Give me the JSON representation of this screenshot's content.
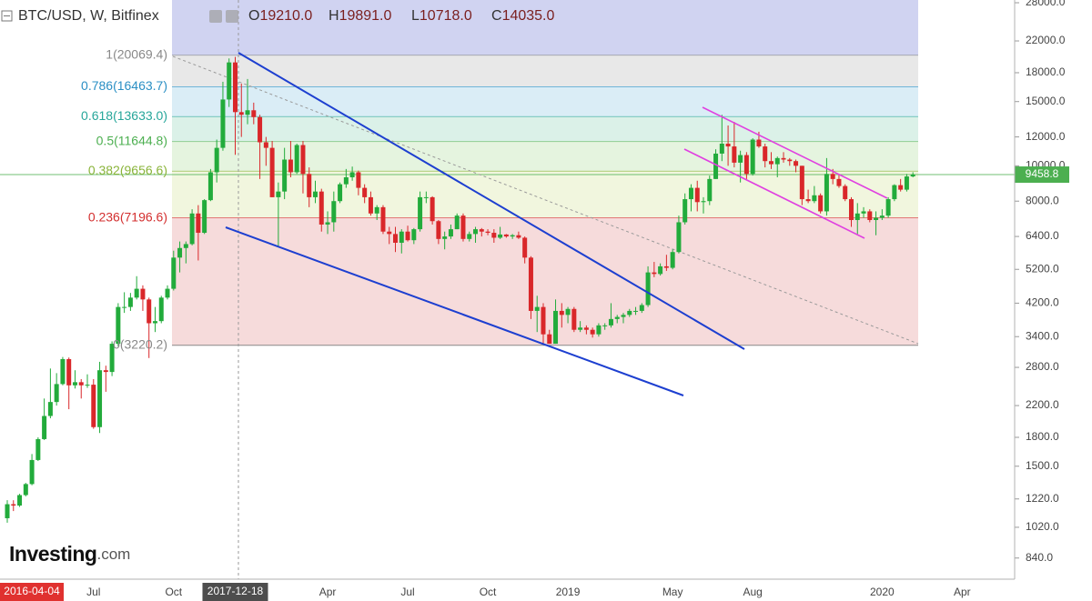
{
  "header": {
    "symbol": "BTC/USD, W, Bitfinex",
    "ohlc": [
      {
        "key": "O",
        "value": "19210.0"
      },
      {
        "key": "H",
        "value": "19891.0"
      },
      {
        "key": "L",
        "value": "10718.0"
      },
      {
        "key": "C",
        "value": "14035.0"
      }
    ]
  },
  "logo": {
    "brand": "Investing",
    "suffix": ".com"
  },
  "cursor_label": "2016-04-04",
  "chart_data": {
    "type": "candlestick",
    "y_scale": "log",
    "up_color": "#22ab3b",
    "down_color": "#d9272a",
    "ylim": [
      735,
      28490
    ],
    "yticks": [
      {
        "value": 840,
        "label": "840.0"
      },
      {
        "value": 1020,
        "label": "1020.0"
      },
      {
        "value": 1220,
        "label": "1220.0"
      },
      {
        "value": 1500,
        "label": "1500.0"
      },
      {
        "value": 1800,
        "label": "1800.0"
      },
      {
        "value": 2200,
        "label": "2200.0"
      },
      {
        "value": 2800,
        "label": "2800.0"
      },
      {
        "value": 3400,
        "label": "3400.0"
      },
      {
        "value": 4200,
        "label": "4200.0"
      },
      {
        "value": 5200,
        "label": "5200.0"
      },
      {
        "value": 6400,
        "label": "6400.0"
      },
      {
        "value": 8000,
        "label": "8000.0"
      },
      {
        "value": 10000,
        "label": "10000.0"
      },
      {
        "value": 12000,
        "label": "12000.0"
      },
      {
        "value": 15000,
        "label": "15000.0"
      },
      {
        "value": 18000,
        "label": "18000.0"
      },
      {
        "value": 22000,
        "label": "22000.0"
      },
      {
        "value": 28000,
        "label": "28000.0"
      }
    ],
    "last_price": {
      "value": 9458.8,
      "label": "9458.8",
      "color": "#4caf50"
    },
    "fib_levels": [
      {
        "value": 20069.4,
        "label": "1(20069.4)",
        "color": "#888888",
        "fill": "#c8cbef"
      },
      {
        "value": 16463.7,
        "label": "0.786(16463.7)",
        "color": "#2a8fc4",
        "fill": "#e4e4e4"
      },
      {
        "value": 13633.0,
        "label": "0.618(13633.0)",
        "color": "#26a69a",
        "fill": "#d4eaf4"
      },
      {
        "value": 11644.8,
        "label": "0.5(11644.8)",
        "color": "#4caf50",
        "fill": "#d5efe4"
      },
      {
        "value": 9656.6,
        "label": "0.382(9656.6)",
        "color": "#8ab43a",
        "fill": "#e0f2d9"
      },
      {
        "value": 7196.6,
        "label": "0.236(7196.6)",
        "color": "#d32f2f",
        "fill": "#eef4d8"
      },
      {
        "value": 3220.2,
        "label": "0(3220.2)",
        "color": "#888888",
        "fill": "#f4d5d5"
      }
    ],
    "categories": [
      null,
      null,
      null,
      null,
      null,
      null,
      null,
      null,
      null,
      null,
      null,
      null,
      null,
      null,
      "Jul",
      null,
      null,
      null,
      null,
      null,
      null,
      null,
      null,
      null,
      null,
      null,
      null,
      "Oct",
      null,
      null,
      null,
      null,
      null,
      null,
      null,
      null,
      null,
      "2017-12-18",
      null,
      null,
      null,
      null,
      null,
      null,
      null,
      null,
      null,
      null,
      null,
      null,
      null,
      null,
      "Apr",
      null,
      null,
      null,
      null,
      null,
      null,
      null,
      null,
      null,
      null,
      null,
      null,
      "Jul",
      null,
      null,
      null,
      null,
      null,
      null,
      null,
      null,
      null,
      null,
      null,
      null,
      "Oct",
      null,
      null,
      null,
      null,
      null,
      null,
      null,
      null,
      null,
      null,
      null,
      null,
      "2019",
      null,
      null,
      null,
      null,
      null,
      null,
      null,
      null,
      null,
      null,
      null,
      null,
      null,
      null,
      null,
      null,
      "May",
      null,
      null,
      null,
      null,
      null,
      null,
      null,
      null,
      null,
      null,
      null,
      null,
      "Aug",
      null,
      null,
      null,
      null,
      null,
      null,
      null,
      null,
      null,
      null,
      null,
      null,
      null,
      null,
      null,
      null,
      null,
      null,
      null,
      null,
      "2020",
      null,
      null,
      null,
      null,
      null,
      null,
      null,
      null,
      null,
      null,
      null,
      null,
      "Apr",
      null,
      null,
      null,
      null,
      null,
      null,
      null,
      null
    ],
    "open": [
      1080,
      1180,
      1170,
      1250,
      1340,
      1560,
      1780,
      2060,
      2250,
      2520,
      2950,
      2500,
      2550,
      2500,
      2510,
      1920,
      2750,
      2720,
      3250,
      4100,
      4100,
      4350,
      4600,
      4300,
      3700,
      3750,
      4350,
      4600,
      5600,
      5950,
      6100,
      7400,
      6550,
      8050,
      9600,
      11200,
      15200,
      19210,
      14035,
      13800,
      14200,
      13600,
      11600,
      11200,
      8200,
      8500,
      10400,
      9600,
      11400,
      9500,
      8200,
      8500,
      6900,
      7000,
      8000,
      8900,
      9300,
      9600,
      8700,
      8200,
      7400,
      7700,
      6600,
      6500,
      6150,
      6600,
      6250,
      6700,
      8200,
      8200,
      7050,
      6300,
      6400,
      6700,
      7300,
      6300,
      6500,
      6700,
      6600,
      6550,
      6350,
      6480,
      6400,
      6450,
      6350,
      5600,
      4000,
      4100,
      3450,
      3250,
      4000,
      3900,
      4050,
      3550,
      3600,
      3550,
      3450,
      3650,
      3650,
      3800,
      3850,
      3900,
      4000,
      4000,
      4150,
      5100,
      5050,
      5300,
      5250,
      5800,
      7000,
      8100,
      8700,
      7950,
      8000,
      9200,
      10800,
      11500,
      11300,
      10200,
      10700,
      9500,
      11800,
      11300,
      10300,
      10100,
      10500,
      10400,
      10300,
      10000,
      8100,
      8000,
      8300,
      7500,
      9500,
      9200,
      8800,
      8100,
      7100,
      7400,
      7500,
      7100,
      7200,
      7300,
      8100,
      8850,
      8600,
      9350,
      null,
      null,
      null,
      null,
      null,
      null,
      null,
      null,
      null,
      null,
      null,
      null,
      null,
      null,
      null,
      null
    ],
    "high": [
      1210,
      1210,
      1260,
      1350,
      1620,
      1800,
      2300,
      2780,
      2700,
      2990,
      2980,
      2750,
      2600,
      2680,
      2600,
      2900,
      2830,
      3300,
      4200,
      4500,
      4480,
      4980,
      4700,
      4350,
      4100,
      4400,
      4700,
      5850,
      6200,
      6200,
      7600,
      7800,
      8100,
      9800,
      11800,
      17000,
      19700,
      19891,
      16800,
      17300,
      14900,
      13800,
      12000,
      11700,
      9000,
      11200,
      11700,
      11500,
      11700,
      9900,
      9100,
      8650,
      7500,
      8500,
      9000,
      9800,
      9950,
      9700,
      8900,
      8500,
      7800,
      7800,
      6800,
      6800,
      6700,
      6850,
      6750,
      8500,
      8500,
      8250,
      7100,
      6600,
      6900,
      7400,
      7400,
      6600,
      6800,
      6750,
      6700,
      6700,
      6800,
      6500,
      6500,
      6600,
      6400,
      5650,
      4400,
      4200,
      3550,
      4300,
      4200,
      4100,
      4100,
      3750,
      3650,
      3600,
      3700,
      3700,
      4200,
      3900,
      3950,
      4050,
      4100,
      4200,
      5300,
      5450,
      5400,
      5700,
      5900,
      7300,
      8400,
      8900,
      9100,
      8200,
      9400,
      11100,
      13800,
      12900,
      13200,
      11000,
      10900,
      11900,
      12400,
      11500,
      10900,
      10600,
      10900,
      10500,
      10400,
      10000,
      8600,
      8800,
      8400,
      10500,
      9800,
      9500,
      8900,
      8200,
      7900,
      7700,
      7600,
      7500,
      7600,
      8200,
      8900,
      9200,
      9500,
      9600,
      null,
      null,
      null,
      null,
      null,
      null,
      null,
      null,
      null,
      null,
      null,
      null,
      null,
      null,
      null,
      null
    ],
    "low": [
      1050,
      1130,
      1160,
      1240,
      1330,
      1550,
      1770,
      2030,
      2200,
      2500,
      2150,
      2450,
      2300,
      2460,
      1900,
      1850,
      2400,
      2650,
      3200,
      3950,
      4000,
      4300,
      4000,
      2970,
      3500,
      3700,
      4300,
      4550,
      5100,
      5400,
      6050,
      5500,
      6500,
      8000,
      9000,
      11000,
      14500,
      10718,
      12000,
      13000,
      13000,
      9200,
      10000,
      8200,
      6000,
      8100,
      9300,
      9500,
      8400,
      7700,
      7900,
      6600,
      6500,
      6600,
      7900,
      8700,
      9100,
      8300,
      7900,
      7300,
      7100,
      6500,
      6100,
      5800,
      5750,
      6200,
      6100,
      6600,
      7900,
      6900,
      6100,
      5900,
      6300,
      6700,
      6200,
      6200,
      6150,
      6400,
      6450,
      6150,
      6300,
      6350,
      6300,
      6300,
      5400,
      3800,
      3500,
      3250,
      3250,
      3250,
      3600,
      3700,
      3500,
      3500,
      3450,
      3380,
      3400,
      3550,
      3600,
      3700,
      3700,
      3850,
      3900,
      3950,
      4100,
      4950,
      5000,
      5150,
      5200,
      5750,
      6900,
      7500,
      7500,
      7400,
      7800,
      9200,
      10300,
      10000,
      9900,
      9000,
      9200,
      9400,
      11200,
      9900,
      9800,
      9300,
      10200,
      10000,
      9600,
      7800,
      7900,
      7900,
      7400,
      7300,
      8900,
      8700,
      8000,
      6800,
      6500,
      7200,
      7000,
      6450,
      7100,
      7200,
      8000,
      8500,
      8500,
      9300,
      null,
      null,
      null,
      null,
      null,
      null,
      null,
      null,
      null,
      null,
      null,
      null,
      null,
      null,
      null,
      null
    ],
    "close": [
      1180,
      1170,
      1250,
      1340,
      1560,
      1780,
      2060,
      2250,
      2520,
      2950,
      2500,
      2550,
      2500,
      2510,
      1920,
      2750,
      2720,
      3250,
      4100,
      4100,
      4350,
      4600,
      4300,
      3700,
      3750,
      4350,
      4600,
      5600,
      5950,
      6100,
      7400,
      6550,
      8050,
      9600,
      11200,
      15200,
      19210,
      14035,
      13800,
      14200,
      13600,
      11600,
      11200,
      8200,
      8500,
      10400,
      9600,
      11400,
      9500,
      8200,
      8500,
      6900,
      7000,
      8000,
      8900,
      9300,
      9600,
      8700,
      8200,
      7400,
      7700,
      6600,
      6500,
      6150,
      6600,
      6250,
      6700,
      8200,
      8200,
      7050,
      6300,
      6400,
      6700,
      7300,
      6300,
      6500,
      6700,
      6600,
      6550,
      6350,
      6480,
      6400,
      6450,
      6350,
      5600,
      4000,
      4100,
      3450,
      3250,
      4000,
      3900,
      4050,
      3550,
      3600,
      3550,
      3450,
      3650,
      3650,
      3800,
      3850,
      3900,
      4000,
      4000,
      4150,
      5100,
      5050,
      5300,
      5250,
      5800,
      7000,
      8100,
      8700,
      7950,
      8000,
      9200,
      10800,
      11500,
      11300,
      10200,
      10700,
      9500,
      11800,
      11300,
      10300,
      10100,
      10500,
      10400,
      10300,
      10000,
      8100,
      8000,
      8300,
      7500,
      9500,
      9200,
      8800,
      8100,
      7100,
      7400,
      7500,
      7100,
      7200,
      7300,
      8100,
      8850,
      8600,
      9350,
      9458.8,
      null,
      null,
      null,
      null,
      null,
      null,
      null,
      null,
      null,
      null,
      null,
      null,
      null,
      null,
      null,
      null
    ]
  }
}
